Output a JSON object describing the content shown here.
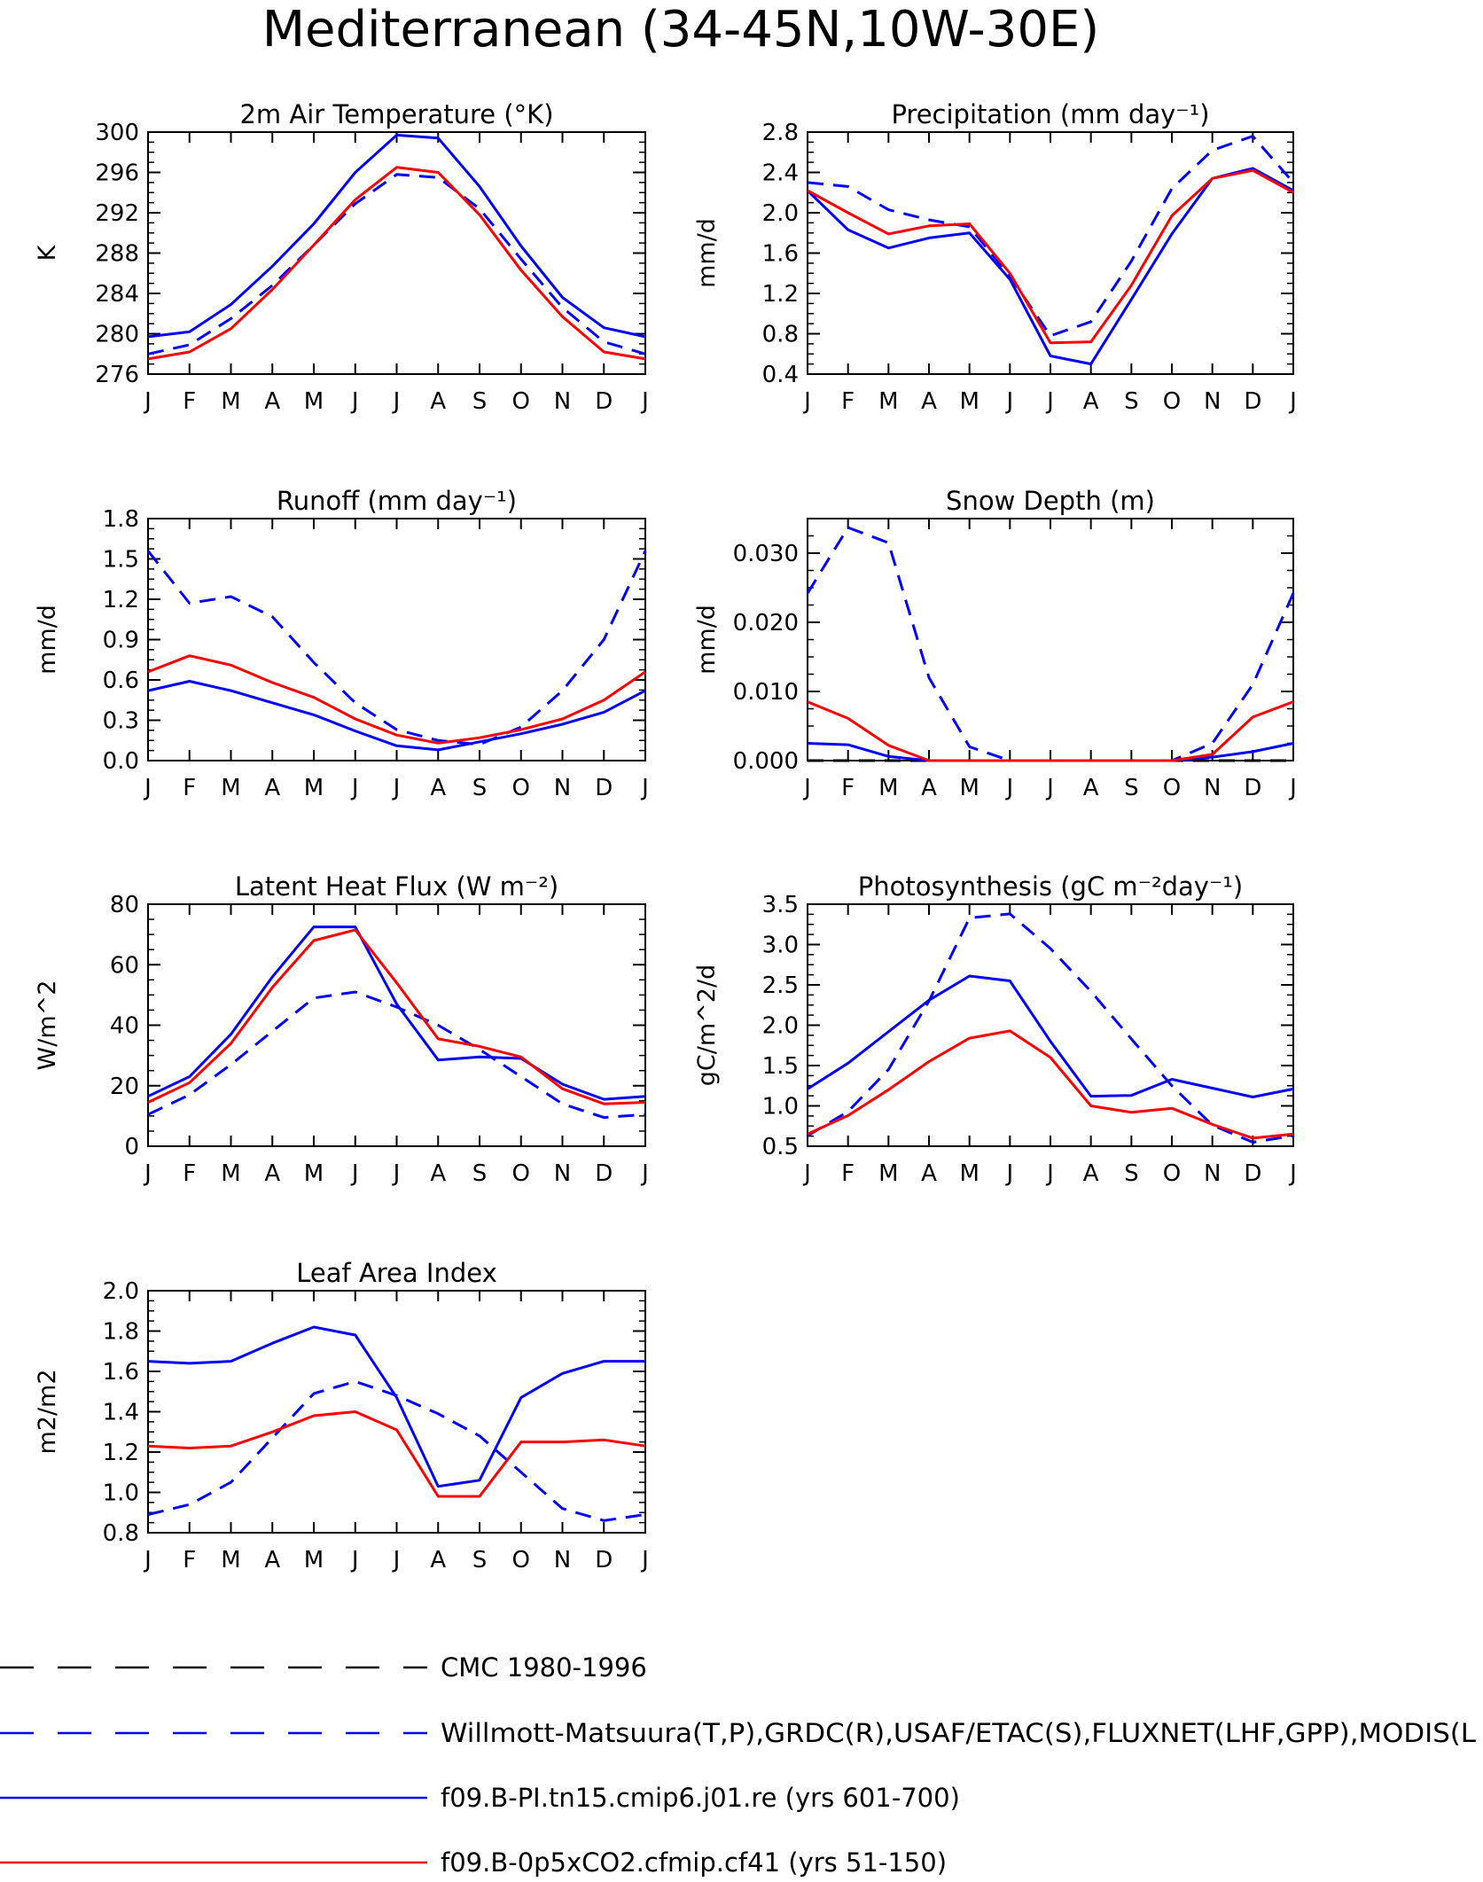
{
  "figure_title": "Mediterranean (34-45N,10W-30E)",
  "months": [
    "J",
    "F",
    "M",
    "A",
    "M",
    "J",
    "J",
    "A",
    "S",
    "O",
    "N",
    "D",
    "J"
  ],
  "legend": [
    {
      "label": "CMC 1980-1996",
      "color": "#000000",
      "dash": true
    },
    {
      "label": "Willmott-Matsuura(T,P),GRDC(R),USAF/ETAC(S),FLUXNET(LHF,GPP),MODIS(L",
      "color": "#0000ff",
      "dash": true
    },
    {
      "label": "f09.B-PI.tn15.cmip6.j01.re (yrs 601-700)",
      "color": "#0000ff",
      "dash": false
    },
    {
      "label": "f09.B-0p5xCO2.cfmip.cf41 (yrs 51-150)",
      "color": "#ff0000",
      "dash": false
    }
  ],
  "chart_data": [
    {
      "type": "line",
      "title": "2m Air Temperature (°K)",
      "ylabel": "K",
      "ylim": [
        276,
        300
      ],
      "yticks": [
        "276",
        "280",
        "284",
        "288",
        "292",
        "296",
        "300"
      ],
      "series": [
        {
          "style": "obs",
          "color": "#0000ff",
          "dash": true,
          "values": [
            278.0,
            278.9,
            281.5,
            284.8,
            288.8,
            292.9,
            295.8,
            295.5,
            292.4,
            287.4,
            282.6,
            279.2,
            278.0
          ]
        },
        {
          "style": "ctl",
          "color": "#0000ff",
          "dash": false,
          "values": [
            279.7,
            280.2,
            282.9,
            286.7,
            290.9,
            296.0,
            299.7,
            299.4,
            294.6,
            288.7,
            283.6,
            280.6,
            279.7
          ]
        },
        {
          "style": "exp",
          "color": "#ff0000",
          "dash": false,
          "values": [
            277.5,
            278.2,
            280.5,
            284.4,
            288.8,
            293.3,
            296.5,
            296.0,
            291.8,
            286.3,
            281.7,
            278.2,
            277.5
          ]
        }
      ]
    },
    {
      "type": "line",
      "title": "Precipitation (mm day⁻¹)",
      "ylabel": "mm/d",
      "ylim": [
        0.4,
        2.8
      ],
      "yticks": [
        "0.4",
        "0.8",
        "1.2",
        "1.6",
        "2.0",
        "2.4",
        "2.8"
      ],
      "series": [
        {
          "style": "obs",
          "color": "#0000ff",
          "dash": true,
          "values": [
            2.3,
            2.26,
            2.03,
            1.93,
            1.86,
            1.37,
            0.78,
            0.92,
            1.52,
            2.24,
            2.62,
            2.76,
            2.3
          ]
        },
        {
          "style": "ctl",
          "color": "#0000ff",
          "dash": false,
          "values": [
            2.22,
            1.83,
            1.65,
            1.75,
            1.8,
            1.34,
            0.58,
            0.5,
            1.14,
            1.79,
            2.34,
            2.44,
            2.22
          ]
        },
        {
          "style": "exp",
          "color": "#ff0000",
          "dash": false,
          "values": [
            2.22,
            2.0,
            1.79,
            1.87,
            1.89,
            1.4,
            0.71,
            0.72,
            1.28,
            1.97,
            2.34,
            2.42,
            2.2
          ]
        }
      ]
    },
    {
      "type": "line",
      "title": "Runoff (mm day⁻¹)",
      "ylabel": "mm/d",
      "ylim": [
        0.0,
        1.8
      ],
      "yticks": [
        "0.0",
        "0.3",
        "0.6",
        "0.9",
        "1.2",
        "1.5",
        "1.8"
      ],
      "series": [
        {
          "style": "obs",
          "color": "#0000ff",
          "dash": true,
          "values": [
            1.56,
            1.17,
            1.22,
            1.07,
            0.73,
            0.43,
            0.23,
            0.15,
            0.12,
            0.25,
            0.52,
            0.9,
            1.56
          ]
        },
        {
          "style": "ctl",
          "color": "#0000ff",
          "dash": false,
          "values": [
            0.52,
            0.59,
            0.52,
            0.43,
            0.34,
            0.22,
            0.11,
            0.08,
            0.14,
            0.2,
            0.27,
            0.36,
            0.52
          ]
        },
        {
          "style": "exp",
          "color": "#ff0000",
          "dash": false,
          "values": [
            0.66,
            0.78,
            0.71,
            0.58,
            0.47,
            0.31,
            0.19,
            0.13,
            0.17,
            0.23,
            0.31,
            0.45,
            0.66
          ]
        }
      ]
    },
    {
      "type": "line",
      "title": "Snow Depth (m)",
      "ylabel": "mm/d",
      "ylim": [
        0.0,
        0.035
      ],
      "yticks": [
        "0.000",
        "0.010",
        "0.020",
        "0.030"
      ],
      "ytick_values": [
        0.0,
        0.01,
        0.02,
        0.03
      ],
      "series": [
        {
          "style": "cmc",
          "color": "#000000",
          "dash": true,
          "values": [
            0,
            0,
            0,
            0,
            0,
            0,
            0,
            0,
            0,
            0,
            0,
            0,
            0
          ]
        },
        {
          "style": "obs",
          "color": "#0000ff",
          "dash": true,
          "values": [
            0.0242,
            0.0337,
            0.0315,
            0.012,
            0.002,
            0.0,
            0.0,
            0.0,
            0.0,
            0.0,
            0.0025,
            0.011,
            0.0242
          ]
        },
        {
          "style": "ctl",
          "color": "#0000ff",
          "dash": false,
          "values": [
            0.0025,
            0.0023,
            0.0006,
            0.0,
            0.0,
            0.0,
            0.0,
            0.0,
            0.0,
            0.0,
            0.0005,
            0.0013,
            0.0025
          ]
        },
        {
          "style": "exp",
          "color": "#ff0000",
          "dash": false,
          "values": [
            0.0085,
            0.0061,
            0.0022,
            0.0,
            0.0,
            0.0,
            0.0,
            0.0,
            0.0,
            0.0,
            0.0009,
            0.0063,
            0.0085
          ]
        }
      ]
    },
    {
      "type": "line",
      "title": "Latent Heat Flux (W m⁻²)",
      "ylabel": "W/m^2",
      "ylim": [
        0,
        80
      ],
      "yticks": [
        "0",
        "20",
        "40",
        "60",
        "80"
      ],
      "series": [
        {
          "style": "obs",
          "color": "#0000ff",
          "dash": true,
          "values": [
            10.5,
            17.0,
            27.0,
            38.0,
            49.0,
            51.0,
            46.0,
            40.0,
            32.0,
            23.0,
            14.0,
            9.5,
            10.5
          ]
        },
        {
          "style": "ctl",
          "color": "#0000ff",
          "dash": false,
          "values": [
            16.5,
            23.0,
            37.0,
            56.0,
            72.5,
            72.5,
            47.0,
            28.5,
            29.5,
            29.0,
            20.5,
            15.5,
            16.5
          ]
        },
        {
          "style": "exp",
          "color": "#ff0000",
          "dash": false,
          "values": [
            14.5,
            21.0,
            34.0,
            52.5,
            68.0,
            71.5,
            54.0,
            35.5,
            33.0,
            29.5,
            19.0,
            14.0,
            14.5
          ]
        }
      ]
    },
    {
      "type": "line",
      "title": "Photosynthesis (gC m⁻²day⁻¹)",
      "ylabel": "gC/m^2/d",
      "ylim": [
        0.5,
        3.5
      ],
      "yticks": [
        "0.5",
        "1.0",
        "1.5",
        "2.0",
        "2.5",
        "3.0",
        "3.5"
      ],
      "series": [
        {
          "style": "obs",
          "color": "#0000ff",
          "dash": true,
          "values": [
            0.63,
            0.93,
            1.45,
            2.3,
            3.33,
            3.38,
            2.95,
            2.42,
            1.83,
            1.25,
            0.76,
            0.55,
            0.63
          ]
        },
        {
          "style": "ctl",
          "color": "#0000ff",
          "dash": false,
          "values": [
            1.21,
            1.53,
            1.92,
            2.31,
            2.61,
            2.55,
            1.8,
            1.12,
            1.13,
            1.33,
            1.22,
            1.11,
            1.21
          ]
        },
        {
          "style": "exp",
          "color": "#ff0000",
          "dash": false,
          "values": [
            0.65,
            0.88,
            1.2,
            1.55,
            1.84,
            1.93,
            1.6,
            1.0,
            0.92,
            0.97,
            0.77,
            0.6,
            0.65
          ]
        }
      ]
    },
    {
      "type": "line",
      "title": "Leaf Area Index",
      "ylabel": "m2/m2",
      "ylim": [
        0.8,
        2.0
      ],
      "yticks": [
        "0.8",
        "1.0",
        "1.2",
        "1.4",
        "1.6",
        "1.8",
        "2.0"
      ],
      "series": [
        {
          "style": "obs",
          "color": "#0000ff",
          "dash": true,
          "values": [
            0.89,
            0.94,
            1.05,
            1.27,
            1.49,
            1.55,
            1.48,
            1.39,
            1.28,
            1.1,
            0.92,
            0.86,
            0.89
          ]
        },
        {
          "style": "ctl",
          "color": "#0000ff",
          "dash": false,
          "values": [
            1.65,
            1.64,
            1.65,
            1.74,
            1.82,
            1.78,
            1.47,
            1.03,
            1.06,
            1.47,
            1.59,
            1.65,
            1.65
          ]
        },
        {
          "style": "exp",
          "color": "#ff0000",
          "dash": false,
          "values": [
            1.23,
            1.22,
            1.23,
            1.3,
            1.38,
            1.4,
            1.31,
            0.98,
            0.98,
            1.25,
            1.25,
            1.26,
            1.23
          ]
        }
      ]
    }
  ]
}
